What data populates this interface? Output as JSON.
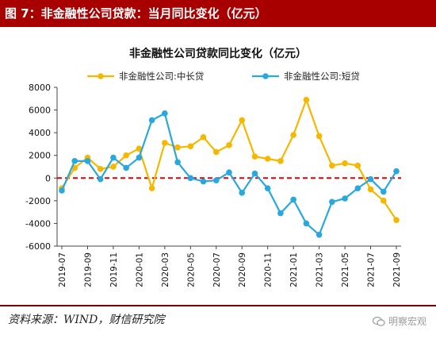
{
  "caption": "图 7：非金融性公司贷款：当月同比变化（亿元）",
  "source_note": "资料来源：WIND，财信研究院",
  "watermark": "明察宏观",
  "colors": {
    "caption_bg": "#a80000",
    "medium_long": "#f5b800",
    "short": "#29a8e0",
    "zero_line": "#e00000"
  },
  "chart_data": {
    "type": "line",
    "title": "非金融性公司贷款同比变化（亿元）",
    "xlabel": "",
    "ylabel": "",
    "ylim": [
      -6000,
      8000
    ],
    "yticks": [
      -6000,
      -4000,
      -2000,
      0,
      2000,
      4000,
      6000,
      8000
    ],
    "ytick_labels": [
      "-6000",
      "-4000",
      "-2000",
      "0",
      "2000",
      "4000",
      "6000",
      "8000"
    ],
    "x": [
      "2019-07",
      "2019-08",
      "2019-09",
      "2019-10",
      "2019-11",
      "2019-12",
      "2020-01",
      "2020-02",
      "2020-03",
      "2020-04",
      "2020-05",
      "2020-06",
      "2020-07",
      "2020-08",
      "2020-09",
      "2020-10",
      "2020-11",
      "2020-12",
      "2021-01",
      "2021-02",
      "2021-03",
      "2021-04",
      "2021-05",
      "2021-06",
      "2021-07",
      "2021-08",
      "2021-09"
    ],
    "xtick_labels": [
      "2019-07",
      "2019-09",
      "2019-11",
      "2020-01",
      "2020-03",
      "2020-05",
      "2020-07",
      "2020-09",
      "2020-11",
      "2021-01",
      "2021-03",
      "2021-05",
      "2021-07",
      "2021-09"
    ],
    "legend_position": "top",
    "grid": false,
    "series": [
      {
        "name": "非金融性公司:中长贷",
        "color": "#f5b800",
        "values": [
          -900,
          900,
          1800,
          800,
          1000,
          2000,
          2600,
          -900,
          3100,
          2700,
          2800,
          3600,
          2300,
          2900,
          5100,
          1900,
          1700,
          1500,
          3800,
          6900,
          3700,
          1100,
          1300,
          1100,
          -1000,
          -2000,
          -3700
        ]
      },
      {
        "name": "非金融性公司:短贷",
        "color": "#29a8e0",
        "values": [
          -1100,
          1500,
          1500,
          -100,
          1800,
          900,
          1800,
          5100,
          5700,
          1400,
          0,
          -300,
          -200,
          500,
          -1300,
          400,
          -900,
          -3100,
          -1900,
          -4000,
          -5000,
          -2100,
          -1800,
          -900,
          -100,
          -1200,
          600
        ]
      }
    ]
  }
}
